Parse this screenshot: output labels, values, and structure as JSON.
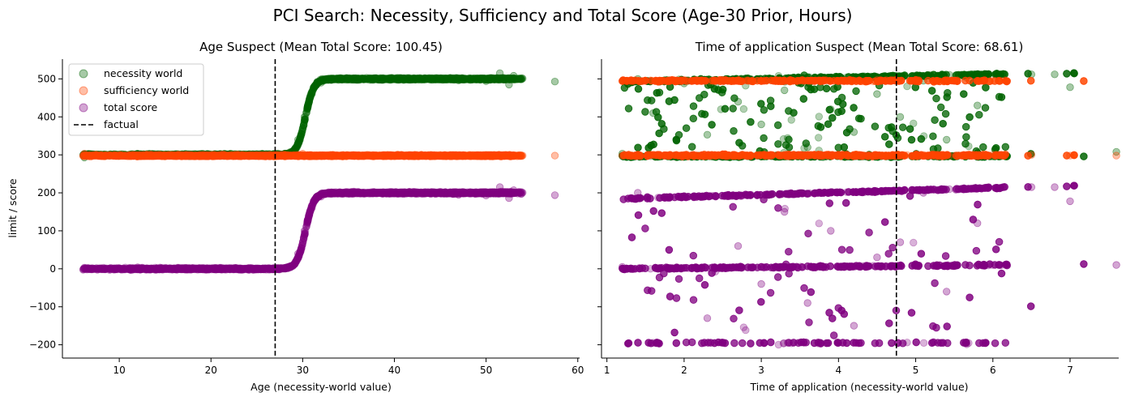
{
  "figure": {
    "title": "PCI Search: Necessity, Sufficiency and Total Score (Age-30 Prior, Hours)"
  },
  "colors": {
    "necessity": "#006400",
    "sufficiency": "#ff4500",
    "total": "#800080",
    "factual": "#000000"
  },
  "legend": {
    "items": [
      {
        "label": "necessity world",
        "kind": "marker",
        "color": "#006400"
      },
      {
        "label": "sufficiency world",
        "kind": "marker",
        "color": "#ff4500"
      },
      {
        "label": "total score",
        "kind": "marker",
        "color": "#800080"
      },
      {
        "label": "factual",
        "kind": "dashed-line",
        "color": "#000000"
      }
    ],
    "placement": "upper-left (left panel)"
  },
  "chart_data": [
    {
      "type": "scatter",
      "title": "Age Suspect (Mean Total Score: 100.45)",
      "xlabel": "Age (necessity-world value)",
      "ylabel": "limit / score",
      "xlim": [
        3.8,
        60.2
      ],
      "ylim": [
        -235,
        552
      ],
      "xticks": [
        10,
        20,
        30,
        40,
        50,
        60
      ],
      "yticks": [
        -200,
        -100,
        0,
        100,
        200,
        300,
        400,
        500
      ],
      "factual_x": 27,
      "grid": false,
      "series": [
        {
          "name": "necessity world",
          "description": "approximately 300 for age < 28.5, rising sigmoidally to ~500 by age 33, plateau ~500 to age 53, outliers at 57.5",
          "points": [
            [
              6.2,
              293
            ],
            [
              7.5,
              300
            ],
            [
              9.5,
              298
            ],
            [
              12,
              303
            ],
            [
              15,
              297
            ],
            [
              18,
              299
            ],
            [
              21,
              302
            ],
            [
              24,
              298
            ],
            [
              27,
              299
            ],
            [
              28.5,
              305
            ],
            [
              29.5,
              340
            ],
            [
              30.2,
              400
            ],
            [
              31,
              460
            ],
            [
              32,
              490
            ],
            [
              33,
              500
            ],
            [
              35,
              498
            ],
            [
              38,
              502
            ],
            [
              41,
              497
            ],
            [
              44,
              500
            ],
            [
              47,
              496
            ],
            [
              50,
              494
            ],
            [
              51.5,
              515
            ],
            [
              52.5,
              485
            ],
            [
              53,
              508
            ],
            [
              57.5,
              493
            ]
          ]
        },
        {
          "name": "sufficiency world",
          "description": "approximately 298 across all ages",
          "points": [
            [
              6.2,
              303
            ],
            [
              7.5,
              300
            ],
            [
              9.5,
              298
            ],
            [
              13,
              301
            ],
            [
              18,
              297
            ],
            [
              23,
              299
            ],
            [
              28,
              301
            ],
            [
              30,
              303
            ],
            [
              33,
              299
            ],
            [
              38,
              298
            ],
            [
              43,
              300
            ],
            [
              48,
              297
            ],
            [
              52,
              298
            ],
            [
              53,
              298
            ],
            [
              57.5,
              298
            ]
          ]
        },
        {
          "name": "total score",
          "description": "approximately 0 for age < 28.5, rising sigmoidally to ~200 by age 33, plateau ~195 to age 53, outliers at 57.5",
          "points": [
            [
              6.2,
              3
            ],
            [
              7.5,
              2
            ],
            [
              9.5,
              1
            ],
            [
              12,
              4
            ],
            [
              15,
              0
            ],
            [
              18,
              2
            ],
            [
              21,
              3
            ],
            [
              24,
              1
            ],
            [
              27,
              -2
            ],
            [
              28.5,
              5
            ],
            [
              29.5,
              40
            ],
            [
              30.2,
              100
            ],
            [
              31,
              160
            ],
            [
              32,
              190
            ],
            [
              33,
              200
            ],
            [
              35,
              198
            ],
            [
              38,
              200
            ],
            [
              41,
              197
            ],
            [
              44,
              199
            ],
            [
              47,
              195
            ],
            [
              50,
              193
            ],
            [
              51.5,
              215
            ],
            [
              52.5,
              186
            ],
            [
              53,
              207
            ],
            [
              57.5,
              194
            ]
          ]
        }
      ]
    },
    {
      "type": "scatter",
      "title": "Time of application Suspect (Mean Total Score: 68.61)",
      "xlabel": "Time of application (necessity-world value)",
      "ylabel": "",
      "xlim": [
        0.93,
        7.63
      ],
      "ylim": [
        -235,
        552
      ],
      "xticks": [
        1,
        2,
        3,
        4,
        5,
        6,
        7
      ],
      "yticks": [
        -200,
        -100,
        0,
        100,
        200,
        300,
        400,
        500
      ],
      "factual_x": 4.75,
      "grid": false,
      "series": [
        {
          "name": "necessity world",
          "description": "two bands (~490-515 and ~290-305) spanning x 1.2-7.6 with many scattered points between 300 and 500",
          "points": [
            [
              1.2,
              303
            ],
            [
              1.4,
              500
            ],
            [
              1.6,
              410
            ],
            [
              2.0,
              488
            ],
            [
              2.3,
              353
            ],
            [
              2.7,
              440
            ],
            [
              3.0,
              380
            ],
            [
              3.3,
              470
            ],
            [
              3.6,
              320
            ],
            [
              3.9,
              420
            ],
            [
              4.2,
              360
            ],
            [
              4.5,
              460
            ],
            [
              4.8,
              400
            ],
            [
              5.1,
              495
            ],
            [
              5.4,
              340
            ],
            [
              5.8,
              430
            ],
            [
              6.1,
              512
            ],
            [
              6.5,
              512
            ],
            [
              6.8,
              512
            ],
            [
              7.0,
              478
            ],
            [
              7.6,
              308
            ]
          ]
        },
        {
          "name": "sufficiency world",
          "description": "dense bands at ~300 and ~495 across x 1.2-7.6, sparse points between",
          "points": [
            [
              1.2,
              298
            ],
            [
              1.5,
              495
            ],
            [
              2.0,
              300
            ],
            [
              2.5,
              497
            ],
            [
              3.0,
              300
            ],
            [
              3.5,
              495
            ],
            [
              4.0,
              300
            ],
            [
              4.5,
              497
            ],
            [
              5.0,
              300
            ],
            [
              5.5,
              495
            ],
            [
              6.0,
              300
            ],
            [
              6.5,
              300
            ],
            [
              7.0,
              298
            ],
            [
              7.6,
              298
            ]
          ]
        },
        {
          "name": "total score",
          "description": "upper band rising from ~185 to ~215, lower band ~0 to ~10, bottom band ~-195, many points scattered between -200 and 200",
          "points": [
            [
              1.2,
              5
            ],
            [
              1.4,
              200
            ],
            [
              1.6,
              -195
            ],
            [
              2.0,
              190
            ],
            [
              2.3,
              -130
            ],
            [
              2.7,
              60
            ],
            [
              3.0,
              -40
            ],
            [
              3.3,
              150
            ],
            [
              3.6,
              -90
            ],
            [
              3.9,
              100
            ],
            [
              4.2,
              -150
            ],
            [
              4.5,
              30
            ],
            [
              4.8,
              70
            ],
            [
              5.1,
              200
            ],
            [
              5.4,
              -60
            ],
            [
              5.8,
              120
            ],
            [
              6.1,
              213
            ],
            [
              6.5,
              215
            ],
            [
              6.8,
              215
            ],
            [
              7.0,
              178
            ],
            [
              7.6,
              10
            ]
          ]
        }
      ]
    }
  ]
}
